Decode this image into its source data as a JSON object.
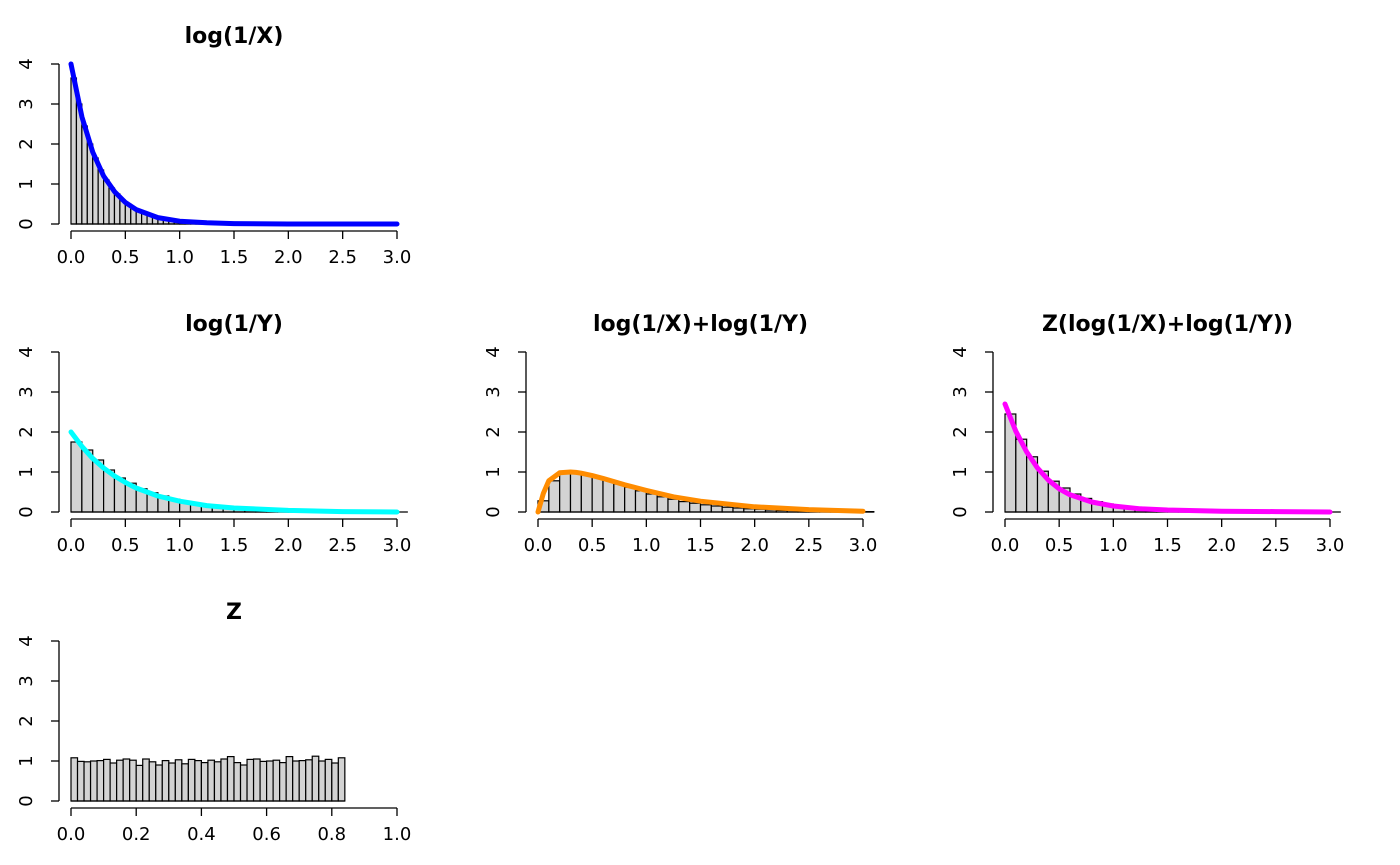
{
  "chart_data": [
    {
      "type": "bar",
      "title": "log(1/X)",
      "xlim": [
        0,
        3
      ],
      "ylim": [
        0,
        4
      ],
      "xticks": [
        0,
        0.5,
        1,
        1.5,
        2,
        2.5,
        3
      ],
      "xtick_labels": [
        "0.0",
        "0.5",
        "1.0",
        "1.5",
        "2.0",
        "2.5",
        "3.0"
      ],
      "yticks": [
        0,
        1,
        2,
        3,
        4
      ],
      "ytick_labels": [
        "0",
        "1",
        "2",
        "3",
        "4"
      ],
      "bin_width": 0.05,
      "histogram": [
        3.65,
        3.0,
        2.45,
        2.0,
        1.65,
        1.35,
        1.1,
        0.9,
        0.75,
        0.6,
        0.5,
        0.4,
        0.33,
        0.27,
        0.22,
        0.18,
        0.15,
        0.12,
        0.1,
        0.08,
        0.06,
        0.05,
        0.04,
        0.03,
        0.03,
        0.02,
        0.02,
        0.01,
        0.01,
        0.01
      ],
      "curve": {
        "color": "#0000ff",
        "x": [
          0,
          0.1,
          0.2,
          0.3,
          0.4,
          0.5,
          0.6,
          0.8,
          1.0,
          1.25,
          1.5,
          2.0,
          2.5,
          3.0
        ],
        "y": [
          4.0,
          2.68,
          1.8,
          1.2,
          0.81,
          0.54,
          0.36,
          0.16,
          0.07,
          0.03,
          0.01,
          0.0,
          0.0,
          0.0
        ]
      }
    },
    {
      "type": "bar",
      "title": "log(1/Y)",
      "xlim": [
        0,
        3
      ],
      "ylim": [
        0,
        4
      ],
      "xticks": [
        0,
        0.5,
        1,
        1.5,
        2,
        2.5,
        3
      ],
      "xtick_labels": [
        "0.0",
        "0.5",
        "1.0",
        "1.5",
        "2.0",
        "2.5",
        "3.0"
      ],
      "yticks": [
        0,
        1,
        2,
        3,
        4
      ],
      "ytick_labels": [
        "0",
        "1",
        "2",
        "3",
        "4"
      ],
      "bin_width": 0.1,
      "histogram": [
        1.75,
        1.55,
        1.3,
        1.05,
        0.85,
        0.72,
        0.58,
        0.48,
        0.4,
        0.32,
        0.27,
        0.22,
        0.18,
        0.14,
        0.12,
        0.1,
        0.08,
        0.06,
        0.05,
        0.04,
        0.03,
        0.03,
        0.02,
        0.02,
        0.01,
        0.01,
        0.01,
        0.0,
        0.0,
        0.0,
        0.0
      ],
      "curve": {
        "color": "#00ffff",
        "x": [
          0,
          0.1,
          0.2,
          0.3,
          0.4,
          0.5,
          0.6,
          0.8,
          1.0,
          1.25,
          1.5,
          2.0,
          2.5,
          3.0
        ],
        "y": [
          2.0,
          1.64,
          1.34,
          1.1,
          0.9,
          0.74,
          0.6,
          0.4,
          0.27,
          0.16,
          0.1,
          0.04,
          0.01,
          0.0
        ]
      }
    },
    {
      "type": "bar",
      "title": "log(1/X)+log(1/Y)",
      "xlim": [
        0,
        3
      ],
      "ylim": [
        0,
        4
      ],
      "xticks": [
        0,
        0.5,
        1,
        1.5,
        2,
        2.5,
        3
      ],
      "xtick_labels": [
        "0.0",
        "0.5",
        "1.0",
        "1.5",
        "2.0",
        "2.5",
        "3.0"
      ],
      "yticks": [
        0,
        1,
        2,
        3,
        4
      ],
      "ytick_labels": [
        "0",
        "1",
        "2",
        "3",
        "4"
      ],
      "bin_width": 0.1,
      "histogram": [
        0.28,
        0.78,
        0.97,
        1.0,
        0.95,
        0.88,
        0.8,
        0.7,
        0.62,
        0.53,
        0.45,
        0.38,
        0.32,
        0.26,
        0.22,
        0.18,
        0.15,
        0.12,
        0.1,
        0.08,
        0.07,
        0.05,
        0.04,
        0.04,
        0.03,
        0.02,
        0.02,
        0.01,
        0.01,
        0.01,
        0.01
      ],
      "curve": {
        "color": "#ff8c00",
        "x": [
          0,
          0.05,
          0.1,
          0.2,
          0.3,
          0.35,
          0.4,
          0.5,
          0.6,
          0.8,
          1.0,
          1.25,
          1.5,
          2.0,
          2.5,
          3.0
        ],
        "y": [
          0.0,
          0.47,
          0.78,
          0.98,
          1.0,
          0.99,
          0.97,
          0.91,
          0.84,
          0.68,
          0.54,
          0.38,
          0.27,
          0.13,
          0.06,
          0.02
        ]
      }
    },
    {
      "type": "bar",
      "title": "Z(log(1/X)+log(1/Y))",
      "xlim": [
        0,
        3
      ],
      "ylim": [
        0,
        4
      ],
      "xticks": [
        0,
        0.5,
        1,
        1.5,
        2,
        2.5,
        3
      ],
      "xtick_labels": [
        "0.0",
        "0.5",
        "1.0",
        "1.5",
        "2.0",
        "2.5",
        "3.0"
      ],
      "yticks": [
        0,
        1,
        2,
        3,
        4
      ],
      "ytick_labels": [
        "0",
        "1",
        "2",
        "3",
        "4"
      ],
      "bin_width": 0.1,
      "histogram": [
        2.45,
        1.82,
        1.38,
        1.02,
        0.77,
        0.6,
        0.45,
        0.34,
        0.26,
        0.2,
        0.15,
        0.12,
        0.09,
        0.07,
        0.05,
        0.04,
        0.03,
        0.03,
        0.02,
        0.02,
        0.01,
        0.01,
        0.01,
        0.01,
        0.0,
        0.0,
        0.0,
        0.0,
        0.0,
        0.0,
        0.0
      ],
      "curve": {
        "color": "#ff00ff",
        "x": [
          0,
          0.1,
          0.2,
          0.3,
          0.4,
          0.5,
          0.6,
          0.8,
          1.0,
          1.25,
          1.5,
          2.0,
          2.5,
          3.0
        ],
        "y": [
          2.7,
          2.02,
          1.5,
          1.1,
          0.8,
          0.58,
          0.43,
          0.25,
          0.15,
          0.08,
          0.05,
          0.02,
          0.01,
          0.0
        ]
      }
    },
    {
      "type": "bar",
      "title": "Z",
      "xlim": [
        0,
        1
      ],
      "ylim": [
        0,
        4
      ],
      "xticks": [
        0,
        0.2,
        0.4,
        0.6,
        0.8,
        1.0
      ],
      "xtick_labels": [
        "0.0",
        "0.2",
        "0.4",
        "0.6",
        "0.8",
        "1.0"
      ],
      "yticks": [
        0,
        1,
        2,
        3,
        4
      ],
      "ytick_labels": [
        "0",
        "1",
        "2",
        "3",
        "4"
      ],
      "bin_width": 0.02,
      "histogram": [
        1.08,
        0.99,
        0.98,
        1.0,
        1.01,
        1.04,
        0.95,
        1.02,
        1.05,
        1.02,
        0.89,
        1.05,
        0.98,
        0.9,
        1.01,
        0.95,
        1.03,
        0.93,
        1.04,
        1.01,
        0.96,
        1.02,
        0.98,
        1.05,
        1.11,
        0.96,
        0.9,
        1.04,
        1.05,
        0.99,
        1.0,
        1.02,
        0.96,
        1.11,
        1.0,
        1.01,
        1.03,
        1.12,
        1.0,
        1.04,
        0.95,
        1.08
      ]
    }
  ]
}
